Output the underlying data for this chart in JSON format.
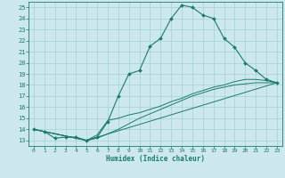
{
  "xlabel": "Humidex (Indice chaleur)",
  "bg_color": "#cce8ee",
  "line_color": "#1a7a6e",
  "grid_color": "#99cccc",
  "xlim": [
    -0.5,
    23.5
  ],
  "ylim": [
    12.5,
    25.5
  ],
  "yticks": [
    13,
    14,
    15,
    16,
    17,
    18,
    19,
    20,
    21,
    22,
    23,
    24,
    25
  ],
  "xticks": [
    0,
    1,
    2,
    3,
    4,
    5,
    6,
    7,
    8,
    9,
    10,
    11,
    12,
    13,
    14,
    15,
    16,
    17,
    18,
    19,
    20,
    21,
    22,
    23
  ],
  "line1_x": [
    0,
    1,
    2,
    3,
    4,
    5,
    6,
    7,
    8,
    9,
    10,
    11,
    12,
    13,
    14,
    15,
    16,
    17,
    18,
    19,
    20,
    21,
    22,
    23
  ],
  "line1_y": [
    14,
    13.8,
    13.2,
    13.3,
    13.3,
    13.0,
    13.3,
    14.7,
    17.0,
    19.0,
    19.3,
    21.5,
    22.2,
    24.0,
    25.2,
    25.0,
    24.3,
    24.0,
    22.2,
    21.4,
    20.0,
    19.3,
    18.5,
    18.2
  ],
  "line2_x": [
    0,
    5,
    6,
    7,
    8,
    9,
    10,
    11,
    12,
    13,
    14,
    15,
    16,
    17,
    18,
    19,
    20,
    21,
    22,
    23
  ],
  "line2_y": [
    14,
    13,
    13.5,
    14.8,
    15.0,
    15.3,
    15.5,
    15.8,
    16.1,
    16.5,
    16.8,
    17.2,
    17.5,
    17.8,
    18.0,
    18.3,
    18.5,
    18.5,
    18.4,
    18.2
  ],
  "line3_x": [
    0,
    5,
    23
  ],
  "line3_y": [
    14,
    13,
    18.2
  ],
  "line4_x": [
    0,
    5,
    6,
    7,
    8,
    9,
    10,
    11,
    12,
    13,
    14,
    15,
    16,
    17,
    18,
    19,
    20,
    21,
    22,
    23
  ],
  "line4_y": [
    14,
    13,
    13.2,
    13.6,
    14.0,
    14.5,
    15.0,
    15.4,
    15.8,
    16.2,
    16.6,
    17.0,
    17.3,
    17.6,
    17.8,
    18.0,
    18.1,
    18.2,
    18.2,
    18.2
  ]
}
